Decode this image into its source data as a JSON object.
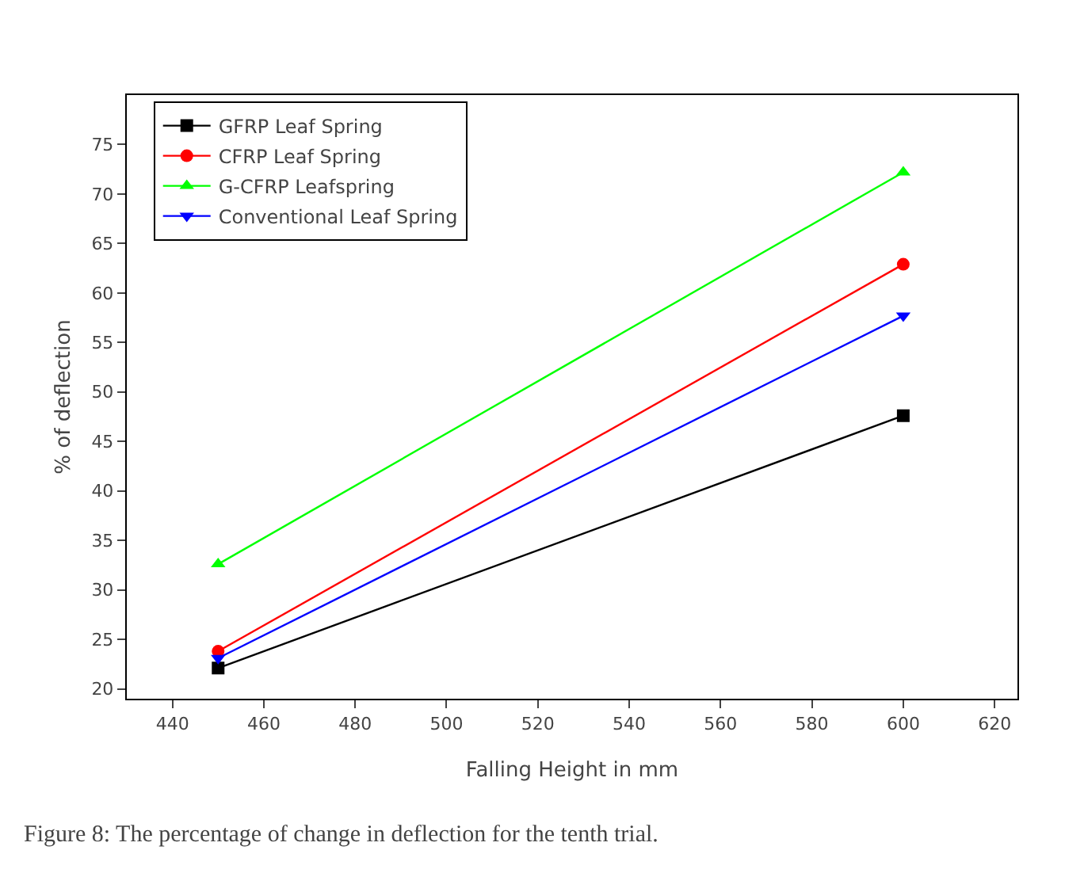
{
  "chart_data": {
    "type": "line",
    "xlabel": "Falling Height in mm",
    "ylabel": "% of deflection",
    "x": [
      450,
      600
    ],
    "series": [
      {
        "name": "GFRP Leaf Spring",
        "color": "#000000",
        "marker": "square",
        "values": [
          22.1,
          47.6
        ]
      },
      {
        "name": "CFRP Leaf Spring",
        "color": "#ff0000",
        "marker": "circle",
        "values": [
          23.8,
          62.9
        ]
      },
      {
        "name": "G-CFRP Leafspring",
        "color": "#00ff00",
        "marker": "triangle",
        "values": [
          32.6,
          72.2
        ]
      },
      {
        "name": "Conventional Leaf Spring",
        "color": "#0000ff",
        "marker": "triangle-down",
        "values": [
          23.1,
          57.7
        ]
      }
    ],
    "xlim": [
      430,
      625
    ],
    "xticks": [
      440,
      460,
      480,
      500,
      520,
      540,
      560,
      580,
      600,
      620
    ],
    "ylim": [
      19,
      80
    ],
    "yticks": [
      20,
      25,
      30,
      35,
      40,
      45,
      50,
      55,
      60,
      65,
      70,
      75
    ],
    "grid": false,
    "legend": "top left",
    "annotations": [
      "Figure 8: The percentage of change in deflection for the tenth trial."
    ]
  }
}
